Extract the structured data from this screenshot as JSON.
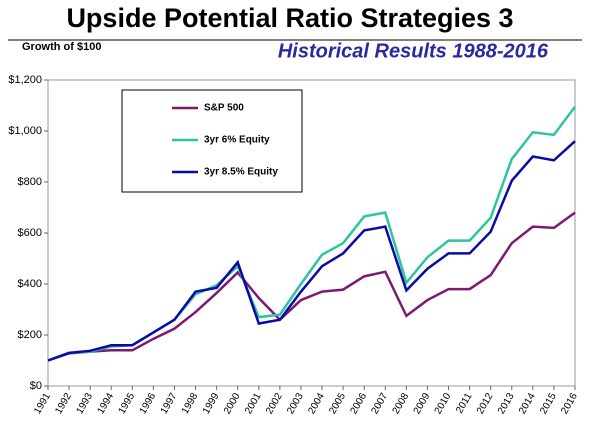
{
  "chart_data": {
    "type": "line",
    "title": "Upside Potential Ratio Strategies 3",
    "subtitle": "Historical Results 1988-2016",
    "y_label": "Growth of $100",
    "categories": [
      "1991",
      "1992",
      "1993",
      "1994",
      "1995",
      "1996",
      "1997",
      "1998",
      "1999",
      "2000",
      "2001",
      "2002",
      "2003",
      "2004",
      "2005",
      "2006",
      "2007",
      "2008",
      "2009",
      "2010",
      "2011",
      "2012",
      "2013",
      "2014",
      "2015",
      "2016"
    ],
    "series": [
      {
        "name": "S&P 500",
        "color": "#7b1a6e",
        "values": [
          100,
          128,
          135,
          140,
          140,
          185,
          225,
          290,
          365,
          445,
          345,
          260,
          337,
          370,
          378,
          430,
          448,
          275,
          337,
          380,
          380,
          435,
          560,
          625,
          620,
          680
        ]
      },
      {
        "name": "3yr 6% Equity",
        "color": "#2ec4a0",
        "values": [
          100,
          130,
          135,
          155,
          160,
          210,
          260,
          360,
          395,
          470,
          270,
          280,
          400,
          515,
          560,
          665,
          680,
          405,
          505,
          570,
          570,
          660,
          890,
          995,
          985,
          1095
        ]
      },
      {
        "name": "3yr 8.5% Equity",
        "color": "#0a0aa8",
        "values": [
          100,
          130,
          138,
          160,
          160,
          210,
          260,
          370,
          385,
          485,
          245,
          260,
          370,
          470,
          520,
          610,
          625,
          375,
          460,
          520,
          520,
          605,
          805,
          900,
          885,
          960
        ]
      }
    ],
    "ylim": [
      0,
      1200
    ],
    "yticks": [
      {
        "value": 0,
        "label": "$0"
      },
      {
        "value": 200,
        "label": "$200"
      },
      {
        "value": 400,
        "label": "$400"
      },
      {
        "value": 600,
        "label": "$600"
      },
      {
        "value": 800,
        "label": "$800"
      },
      {
        "value": 1000,
        "label": "$1,000"
      },
      {
        "value": 1200,
        "label": "$1,200"
      }
    ],
    "grid": false
  }
}
